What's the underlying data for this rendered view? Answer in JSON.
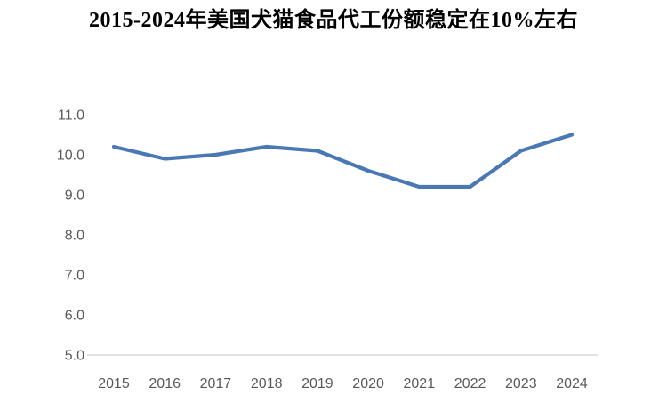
{
  "title": "2015-2024年美国犬猫食品代工份额稳定在10%左右",
  "colors": {
    "line": "#4a78b4",
    "axis_line": "#d9d9d9",
    "tick_label": "#595959",
    "title": "#000000",
    "background": "#ffffff"
  },
  "chart_data": {
    "type": "line",
    "title": "2015-2024年美国犬猫食品代工份额稳定在10%左右",
    "categories": [
      "2015",
      "2016",
      "2017",
      "2018",
      "2019",
      "2020",
      "2021",
      "2022",
      "2023",
      "2024"
    ],
    "values": [
      10.2,
      9.9,
      10.0,
      10.2,
      10.1,
      9.6,
      9.2,
      9.2,
      10.1,
      10.5
    ],
    "xlabel": "",
    "ylabel": "",
    "ylim": [
      5.0,
      11.0
    ],
    "ytick_step": 1.0,
    "ytick_labels": [
      "5.0",
      "6.0",
      "7.0",
      "8.0",
      "9.0",
      "10.0",
      "11.0"
    ],
    "grid": false,
    "legend": false
  }
}
